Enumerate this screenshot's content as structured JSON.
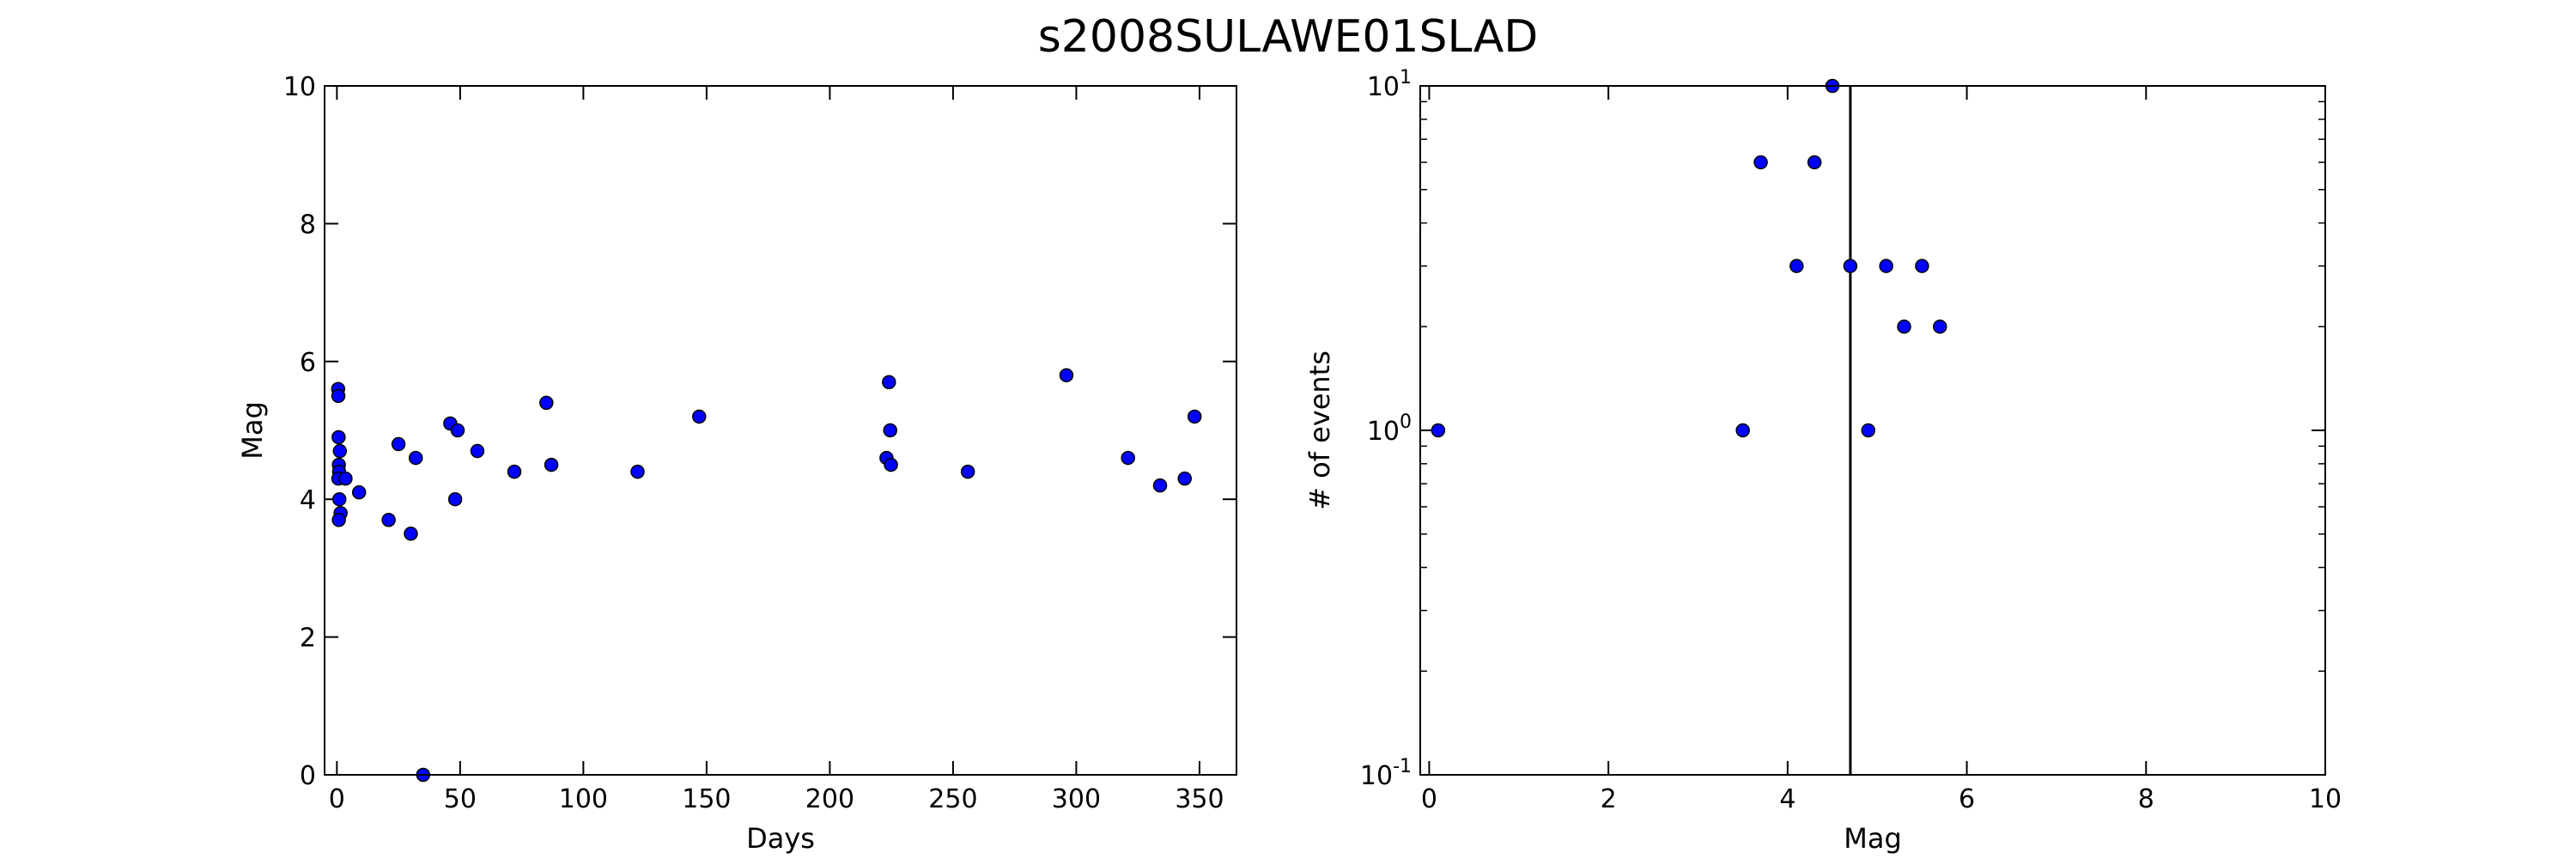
{
  "title": "s2008SULAWE01SLAD",
  "chart_data": [
    {
      "type": "scatter",
      "xlabel": "Days",
      "ylabel": "Mag",
      "xlim": [
        -5,
        365
      ],
      "ylim": [
        0,
        10
      ],
      "x_ticks": [
        "0",
        "50",
        "100",
        "150",
        "200",
        "250",
        "300",
        "350"
      ],
      "y_ticks": [
        "0",
        "2",
        "4",
        "6",
        "8",
        "10"
      ],
      "grid": false,
      "marker_color": "#0000ff",
      "points": [
        [
          0.5,
          5.6
        ],
        [
          0.6,
          5.5
        ],
        [
          0.7,
          4.9
        ],
        [
          1.2,
          4.7
        ],
        [
          0.8,
          4.5
        ],
        [
          0.9,
          4.4
        ],
        [
          0.6,
          4.3
        ],
        [
          3.5,
          4.3
        ],
        [
          1.0,
          4.0
        ],
        [
          1.5,
          3.8
        ],
        [
          0.8,
          3.7
        ],
        [
          9,
          4.1
        ],
        [
          21,
          3.7
        ],
        [
          25,
          4.8
        ],
        [
          30,
          3.5
        ],
        [
          32,
          4.6
        ],
        [
          35,
          0.0
        ],
        [
          46,
          5.1
        ],
        [
          48,
          4.0
        ],
        [
          49,
          5.0
        ],
        [
          57,
          4.7
        ],
        [
          72,
          4.4
        ],
        [
          85,
          5.4
        ],
        [
          87,
          4.5
        ],
        [
          122,
          4.4
        ],
        [
          147,
          5.2
        ],
        [
          223,
          4.6
        ],
        [
          224,
          5.7
        ],
        [
          224.5,
          5.0
        ],
        [
          224.8,
          4.5
        ],
        [
          256,
          4.4
        ],
        [
          296,
          5.8
        ],
        [
          321,
          4.6
        ],
        [
          334,
          4.2
        ],
        [
          344,
          4.3
        ],
        [
          348,
          5.2
        ]
      ]
    },
    {
      "type": "scatter",
      "xlabel": "Mag",
      "ylabel": "# of events",
      "xlim": [
        -0.1,
        10
      ],
      "ylim": [
        0.1,
        10
      ],
      "yscale": "log",
      "x_ticks": [
        "0",
        "2",
        "4",
        "6",
        "8",
        "10"
      ],
      "y_ticks": [
        "10^-1",
        "10^0",
        "10^1"
      ],
      "grid": false,
      "marker_color": "#0000ff",
      "vline_x": 4.7,
      "points": [
        [
          0.1,
          1
        ],
        [
          3.5,
          1
        ],
        [
          3.7,
          6
        ],
        [
          4.1,
          3
        ],
        [
          4.3,
          6
        ],
        [
          4.5,
          10
        ],
        [
          4.7,
          3
        ],
        [
          4.9,
          1
        ],
        [
          5.1,
          3
        ],
        [
          5.3,
          2
        ],
        [
          5.5,
          3
        ],
        [
          5.7,
          2
        ]
      ]
    }
  ]
}
